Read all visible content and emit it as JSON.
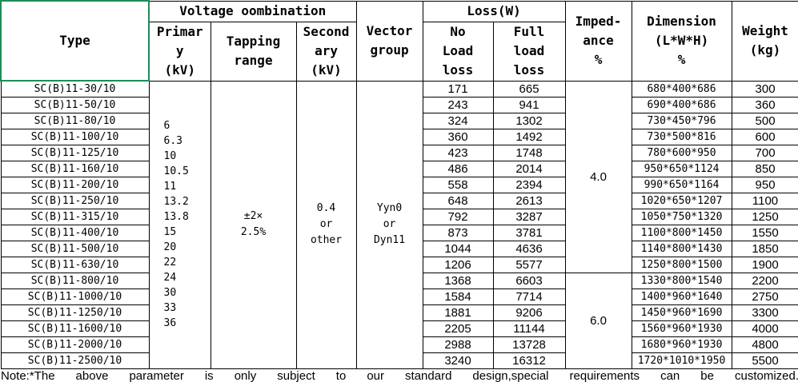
{
  "header": {
    "type": "Type",
    "voltage_combination": "Voltage oombination",
    "primary": "Primar\ny\n(kV)",
    "tapping_range": "Tapping\nrange",
    "secondary": "Second\nary\n(kV)",
    "vector_group": "Vector\ngroup",
    "loss": "Loss(W)",
    "no_load_loss": "No\nLoad\nloss",
    "full_load_loss": "Full\nload\nloss",
    "impedance": "Imped-\nance\n%",
    "dimension": "Dimension\n(L*W*H)\n%",
    "weight": "Weight\n(kg)"
  },
  "primary_voltages": [
    "6",
    "6.3",
    "10",
    "10.5",
    "11",
    "13.2",
    "13.8",
    "15",
    "20",
    "22",
    "24",
    "30",
    "33",
    "36"
  ],
  "tapping_range": "±2×\n2.5%",
  "secondary": "0.4\nor\nother",
  "vector_group": "Yyn0\nor\nDyn11",
  "impedance": [
    "4.0",
    "6.0"
  ],
  "rows": [
    {
      "type": "SC(B)11-30/10",
      "no_load_loss": 171,
      "full_load_loss": 665,
      "dimension": "680*400*686",
      "weight": 300
    },
    {
      "type": "SC(B)11-50/10",
      "no_load_loss": 243,
      "full_load_loss": 941,
      "dimension": "690*400*686",
      "weight": 360
    },
    {
      "type": "SC(B)11-80/10",
      "no_load_loss": 324,
      "full_load_loss": 1302,
      "dimension": "730*450*796",
      "weight": 500
    },
    {
      "type": "SC(B)11-100/10",
      "no_load_loss": 360,
      "full_load_loss": 1492,
      "dimension": "730*500*816",
      "weight": 600
    },
    {
      "type": "SC(B)11-125/10",
      "no_load_loss": 423,
      "full_load_loss": 1748,
      "dimension": "780*600*950",
      "weight": 700
    },
    {
      "type": "SC(B)11-160/10",
      "no_load_loss": 486,
      "full_load_loss": 2014,
      "dimension": "950*650*1124",
      "weight": 850
    },
    {
      "type": "SC(B)11-200/10",
      "no_load_loss": 558,
      "full_load_loss": 2394,
      "dimension": "990*650*1164",
      "weight": 950
    },
    {
      "type": "SC(B)11-250/10",
      "no_load_loss": 648,
      "full_load_loss": 2613,
      "dimension": "1020*650*1207",
      "weight": 1100
    },
    {
      "type": "SC(B)11-315/10",
      "no_load_loss": 792,
      "full_load_loss": 3287,
      "dimension": "1050*750*1320",
      "weight": 1250
    },
    {
      "type": "SC(B)11-400/10",
      "no_load_loss": 873,
      "full_load_loss": 3781,
      "dimension": "1100*800*1450",
      "weight": 1550
    },
    {
      "type": "SC(B)11-500/10",
      "no_load_loss": 1044,
      "full_load_loss": 4636,
      "dimension": "1140*800*1430",
      "weight": 1850
    },
    {
      "type": "SC(B)11-630/10",
      "no_load_loss": 1206,
      "full_load_loss": 5577,
      "dimension": "1250*800*1500",
      "weight": 1900
    },
    {
      "type": "SC(B)11-800/10",
      "no_load_loss": 1368,
      "full_load_loss": 6603,
      "dimension": "1330*800*1540",
      "weight": 2200
    },
    {
      "type": "SC(B)11-1000/10",
      "no_load_loss": 1584,
      "full_load_loss": 7714,
      "dimension": "1400*960*1640",
      "weight": 2750
    },
    {
      "type": "SC(B)11-1250/10",
      "no_load_loss": 1881,
      "full_load_loss": 9206,
      "dimension": "1450*960*1690",
      "weight": 3300
    },
    {
      "type": "SC(B)11-1600/10",
      "no_load_loss": 2205,
      "full_load_loss": 11144,
      "dimension": "1560*960*1930",
      "weight": 4000
    },
    {
      "type": "SC(B)11-2000/10",
      "no_load_loss": 2988,
      "full_load_loss": 13728,
      "dimension": "1680*960*1930",
      "weight": 4800
    },
    {
      "type": "SC(B)11-2500/10",
      "no_load_loss": 3240,
      "full_load_loss": 16312,
      "dimension": "1720*1010*1950",
      "weight": 5500
    }
  ],
  "note": "Note:*The above parameter is only subject to our standard design,special requirements can be customized."
}
